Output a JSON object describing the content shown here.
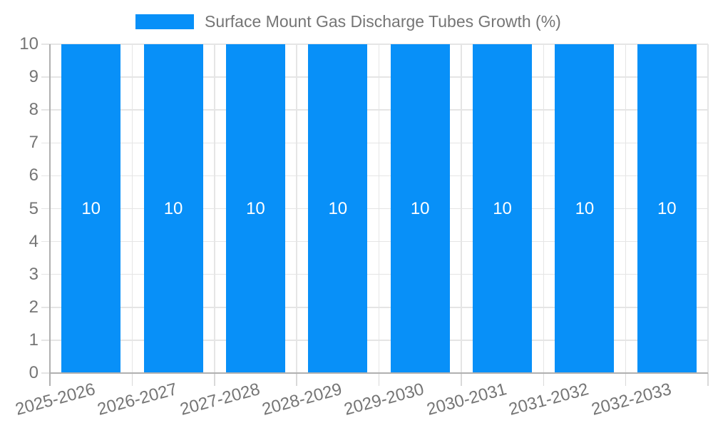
{
  "chart_data": {
    "type": "bar",
    "title": "Surface Mount Gas Discharge Tubes Growth (%)",
    "categories": [
      "2025-2026",
      "2026-2027",
      "2027-2028",
      "2028-2029",
      "2029-2030",
      "2030-2031",
      "2031-2032",
      "2032-2033"
    ],
    "values": [
      10,
      10,
      10,
      10,
      10,
      10,
      10,
      10
    ],
    "bar_value_labels": [
      "10",
      "10",
      "10",
      "10",
      "10",
      "10",
      "10",
      "10"
    ],
    "xlabel": "",
    "ylabel": "",
    "ylim": [
      0,
      10
    ],
    "yticks": [
      0,
      1,
      2,
      3,
      4,
      5,
      6,
      7,
      8,
      9,
      10
    ],
    "grid": true,
    "legend_position": "top-center",
    "x_tick_label_rotation_deg": -15
  },
  "colors": {
    "bar": "#0890F8",
    "grid": "#E5E5E5",
    "axis": "#B0B0B0",
    "tick": "#D9D9D9",
    "text": "#757575",
    "value_label": "#FFFFFF",
    "background": "#FFFFFF"
  }
}
